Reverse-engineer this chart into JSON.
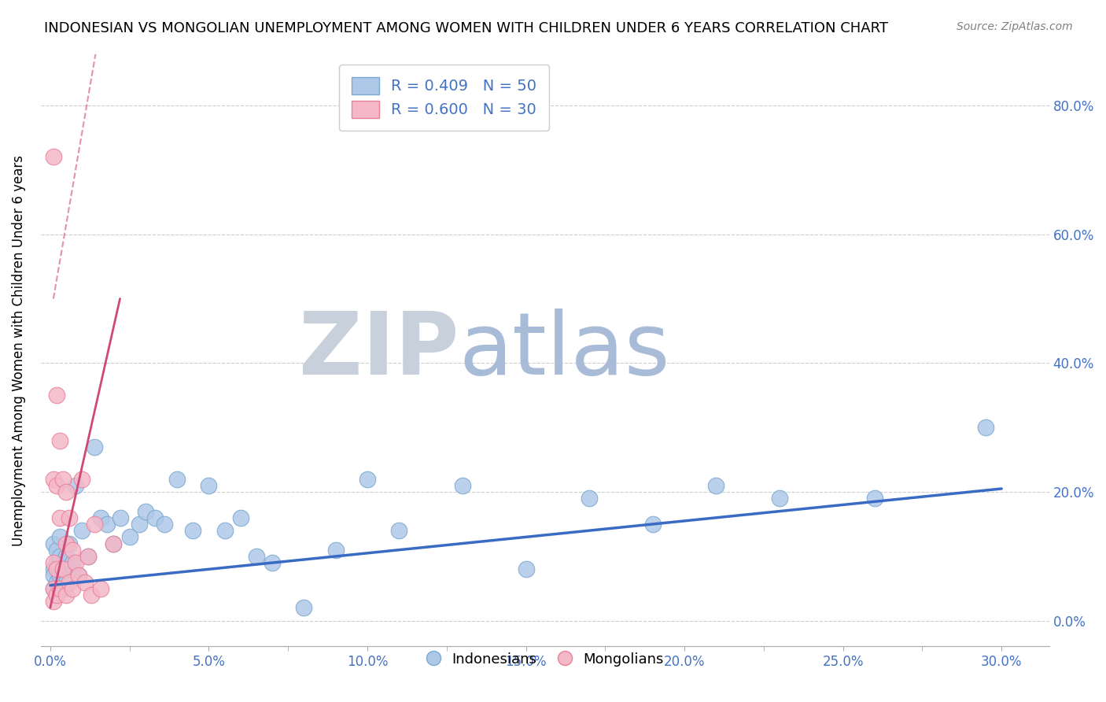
{
  "title": "INDONESIAN VS MONGOLIAN UNEMPLOYMENT AMONG WOMEN WITH CHILDREN UNDER 6 YEARS CORRELATION CHART",
  "source": "Source: ZipAtlas.com",
  "ylabel": "Unemployment Among Women with Children Under 6 years",
  "x_tick_labels": [
    "0.0%",
    "",
    "5.0%",
    "",
    "10.0%",
    "",
    "15.0%",
    "",
    "20.0%",
    "",
    "25.0%",
    "",
    "30.0%"
  ],
  "x_tick_values": [
    0.0,
    0.025,
    0.05,
    0.075,
    0.1,
    0.125,
    0.15,
    0.175,
    0.2,
    0.225,
    0.25,
    0.275,
    0.3
  ],
  "x_major_ticks": [
    0.0,
    0.05,
    0.1,
    0.15,
    0.2,
    0.25,
    0.3
  ],
  "x_major_labels": [
    "0.0%",
    "5.0%",
    "10.0%",
    "15.0%",
    "20.0%",
    "25.0%",
    "30.0%"
  ],
  "y_tick_labels_right": [
    "0.0%",
    "20.0%",
    "40.0%",
    "60.0%",
    "80.0%"
  ],
  "y_tick_values": [
    0.0,
    0.2,
    0.4,
    0.6,
    0.8
  ],
  "xlim": [
    -0.003,
    0.315
  ],
  "ylim": [
    -0.04,
    0.88
  ],
  "indonesian_color": "#aec8e8",
  "mongolian_color": "#f4b8c8",
  "indonesian_edge": "#7ba8d0",
  "mongolian_edge": "#e88098",
  "trend_blue": "#3a6bc4",
  "trend_pink": "#d04878",
  "label_color": "#4472c4",
  "legend_label_blue": "R = 0.409   N = 50",
  "legend_label_pink": "R = 0.600   N = 30",
  "bottom_legend_indonesians": "Indonesians",
  "bottom_legend_mongolians": "Mongolians",
  "watermark_ZIP": "ZIP",
  "watermark_atlas": "atlas",
  "watermark_color_ZIP": "#c8d0dc",
  "watermark_color_atlas": "#a8bcd8",
  "indonesian_x": [
    0.001,
    0.001,
    0.001,
    0.001,
    0.002,
    0.002,
    0.002,
    0.003,
    0.003,
    0.003,
    0.004,
    0.004,
    0.005,
    0.005,
    0.006,
    0.006,
    0.007,
    0.008,
    0.009,
    0.01,
    0.012,
    0.014,
    0.016,
    0.018,
    0.02,
    0.022,
    0.025,
    0.028,
    0.03,
    0.033,
    0.036,
    0.04,
    0.045,
    0.05,
    0.055,
    0.06,
    0.065,
    0.07,
    0.08,
    0.09,
    0.1,
    0.11,
    0.13,
    0.15,
    0.17,
    0.19,
    0.21,
    0.23,
    0.26,
    0.295
  ],
  "indonesian_y": [
    0.08,
    0.05,
    0.12,
    0.07,
    0.09,
    0.06,
    0.11,
    0.1,
    0.07,
    0.13,
    0.08,
    0.05,
    0.1,
    0.06,
    0.12,
    0.08,
    0.09,
    0.21,
    0.07,
    0.14,
    0.1,
    0.27,
    0.16,
    0.15,
    0.12,
    0.16,
    0.13,
    0.15,
    0.17,
    0.16,
    0.15,
    0.22,
    0.14,
    0.21,
    0.14,
    0.16,
    0.1,
    0.09,
    0.02,
    0.11,
    0.22,
    0.14,
    0.21,
    0.08,
    0.19,
    0.15,
    0.21,
    0.19,
    0.19,
    0.3
  ],
  "mongolian_x": [
    0.001,
    0.001,
    0.001,
    0.001,
    0.001,
    0.002,
    0.002,
    0.002,
    0.002,
    0.003,
    0.003,
    0.003,
    0.004,
    0.004,
    0.005,
    0.005,
    0.005,
    0.006,
    0.006,
    0.007,
    0.007,
    0.008,
    0.009,
    0.01,
    0.011,
    0.012,
    0.013,
    0.014,
    0.016,
    0.02
  ],
  "mongolian_y": [
    0.72,
    0.22,
    0.09,
    0.05,
    0.03,
    0.35,
    0.21,
    0.08,
    0.04,
    0.28,
    0.16,
    0.05,
    0.22,
    0.08,
    0.2,
    0.12,
    0.04,
    0.16,
    0.06,
    0.11,
    0.05,
    0.09,
    0.07,
    0.22,
    0.06,
    0.1,
    0.04,
    0.15,
    0.05,
    0.12
  ],
  "blue_trend_x": [
    0.0,
    0.3
  ],
  "blue_trend_y": [
    0.055,
    0.205
  ],
  "pink_trend_x": [
    0.0,
    0.022
  ],
  "pink_trend_y": [
    0.02,
    0.5
  ]
}
